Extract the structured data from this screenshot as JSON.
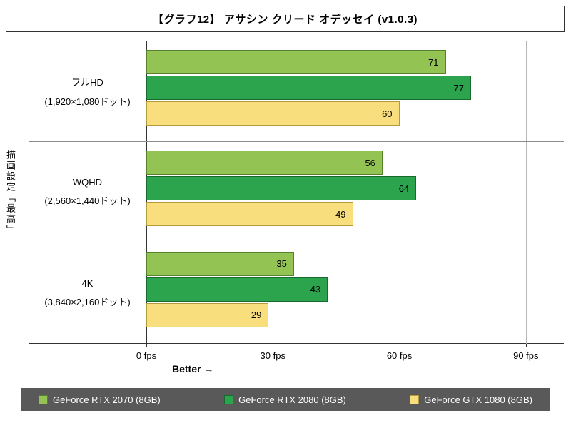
{
  "chart": {
    "title": "【グラフ12】 アサシン クリード オデッセイ (v1.0.3)",
    "y_axis_label": "描画設定「最高」",
    "better_label": "Better →"
  },
  "chart_data": {
    "type": "bar",
    "orientation": "horizontal",
    "title": "【グラフ12】 アサシン クリード オデッセイ (v1.0.3)",
    "ylabel": "描画設定「最高」",
    "xlabel": "fps",
    "xlim": [
      0,
      99
    ],
    "x_ticks": [
      0,
      30,
      60,
      90
    ],
    "x_tick_labels": [
      "0 fps",
      "30 fps",
      "60 fps",
      "90 fps"
    ],
    "grid": "vertical",
    "legend_position": "bottom",
    "legend_background": "#595959",
    "categories": [
      {
        "label": "フルHD",
        "sub": "(1,920×1,080ドット)"
      },
      {
        "label": "WQHD",
        "sub": "(2,560×1,440ドット)"
      },
      {
        "label": "4K",
        "sub": "(3,840×2,160ドット)"
      }
    ],
    "series": [
      {
        "name": "GeForce RTX 2070 (8GB)",
        "color": "#92c353",
        "border": "#55822b",
        "values": [
          71,
          56,
          35
        ]
      },
      {
        "name": "GeForce RTX 2080 (8GB)",
        "color": "#2ca44e",
        "border": "#16692f",
        "values": [
          77,
          64,
          43
        ]
      },
      {
        "name": "GeForce GTX 1080 (8GB)",
        "color": "#f8de7c",
        "border": "#b29a3d",
        "values": [
          60,
          49,
          29
        ]
      }
    ]
  }
}
